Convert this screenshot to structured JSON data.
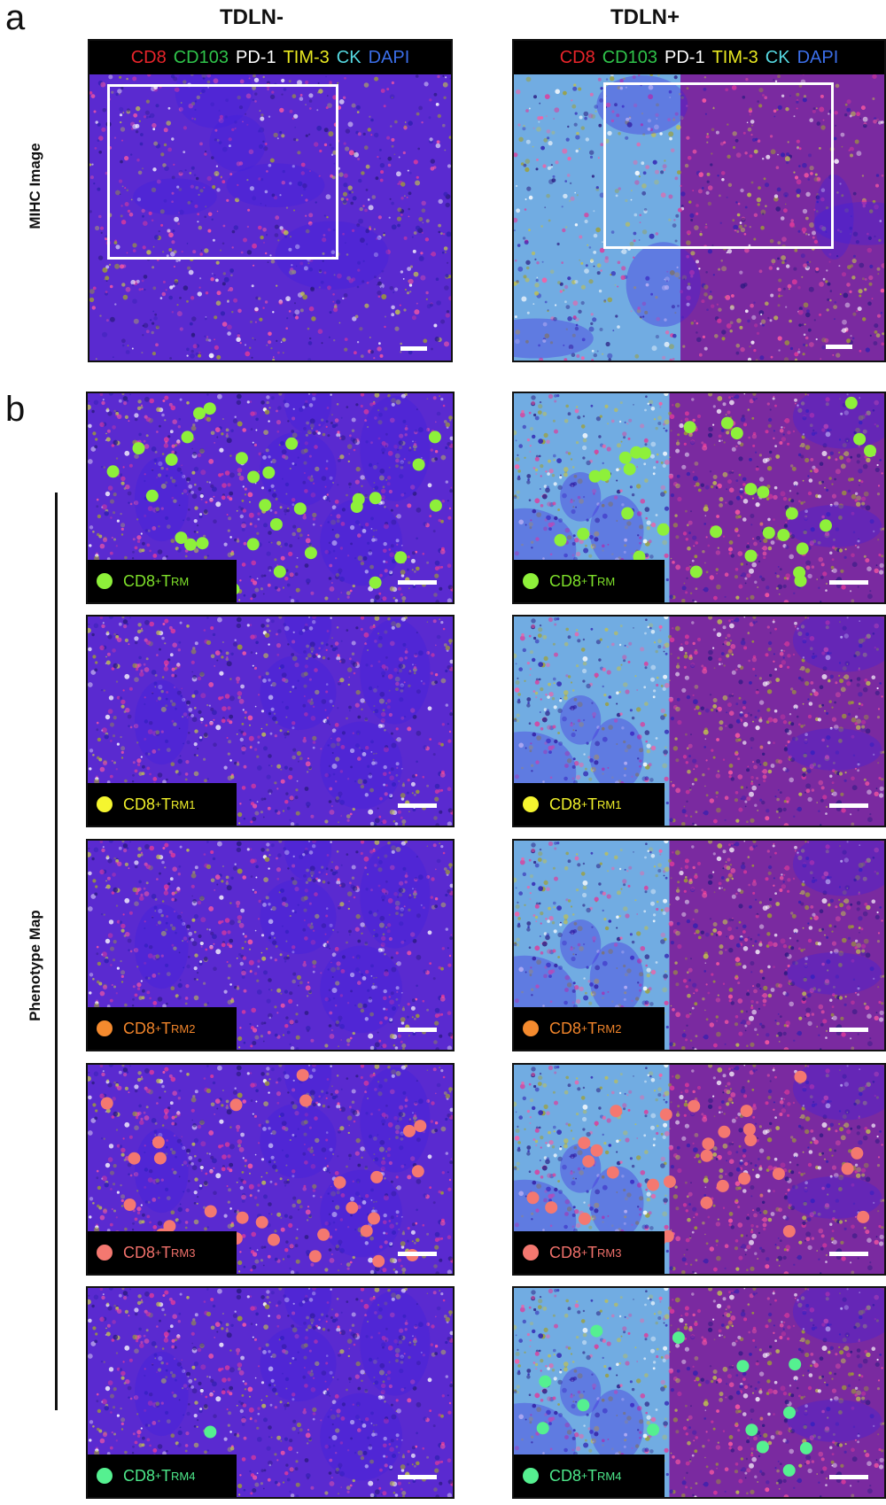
{
  "panel_a": {
    "letter": "a",
    "col_titles": [
      "TDLN-",
      "TDLN+"
    ],
    "row_label": "MIHC Image",
    "markers": [
      {
        "text": "CD8",
        "color": "#e8242a"
      },
      {
        "text": "CD103",
        "color": "#2fc34a"
      },
      {
        "text": "PD-1",
        "color": "#ffffff"
      },
      {
        "text": "TIM-3",
        "color": "#e8e821"
      },
      {
        "text": "CK",
        "color": "#55d8e0"
      },
      {
        "text": "DAPI",
        "color": "#3b6ee8"
      }
    ]
  },
  "panel_b": {
    "letter": "b",
    "row_label": "Phenotype Map",
    "rows": [
      {
        "base": "CD8",
        "sup": "+",
        "t": "T",
        "sub": "RM",
        "color": "#7ee02a",
        "legend_dot": "#8ef03a"
      },
      {
        "base": "CD8",
        "sup": "+",
        "t": "T",
        "sub": "RM1",
        "color": "#f0f02a",
        "legend_dot": "#f5f52f"
      },
      {
        "base": "CD8",
        "sup": "+",
        "t": "T",
        "sub": "RM2",
        "color": "#f0842a",
        "legend_dot": "#f48a2e"
      },
      {
        "base": "CD8",
        "sup": "+",
        "t": "T",
        "sub": "RM3",
        "color": "#f0706a",
        "legend_dot": "#f47870"
      },
      {
        "base": "CD8",
        "sup": "+",
        "t": "T",
        "sub": "RM4",
        "color": "#4de88a",
        "legend_dot": "#55f090"
      }
    ]
  },
  "colors": {
    "tissue_negative": "#5a2ad0",
    "tissue_positive": "#7a2aa0",
    "ck_region": "#7ad8e8"
  }
}
